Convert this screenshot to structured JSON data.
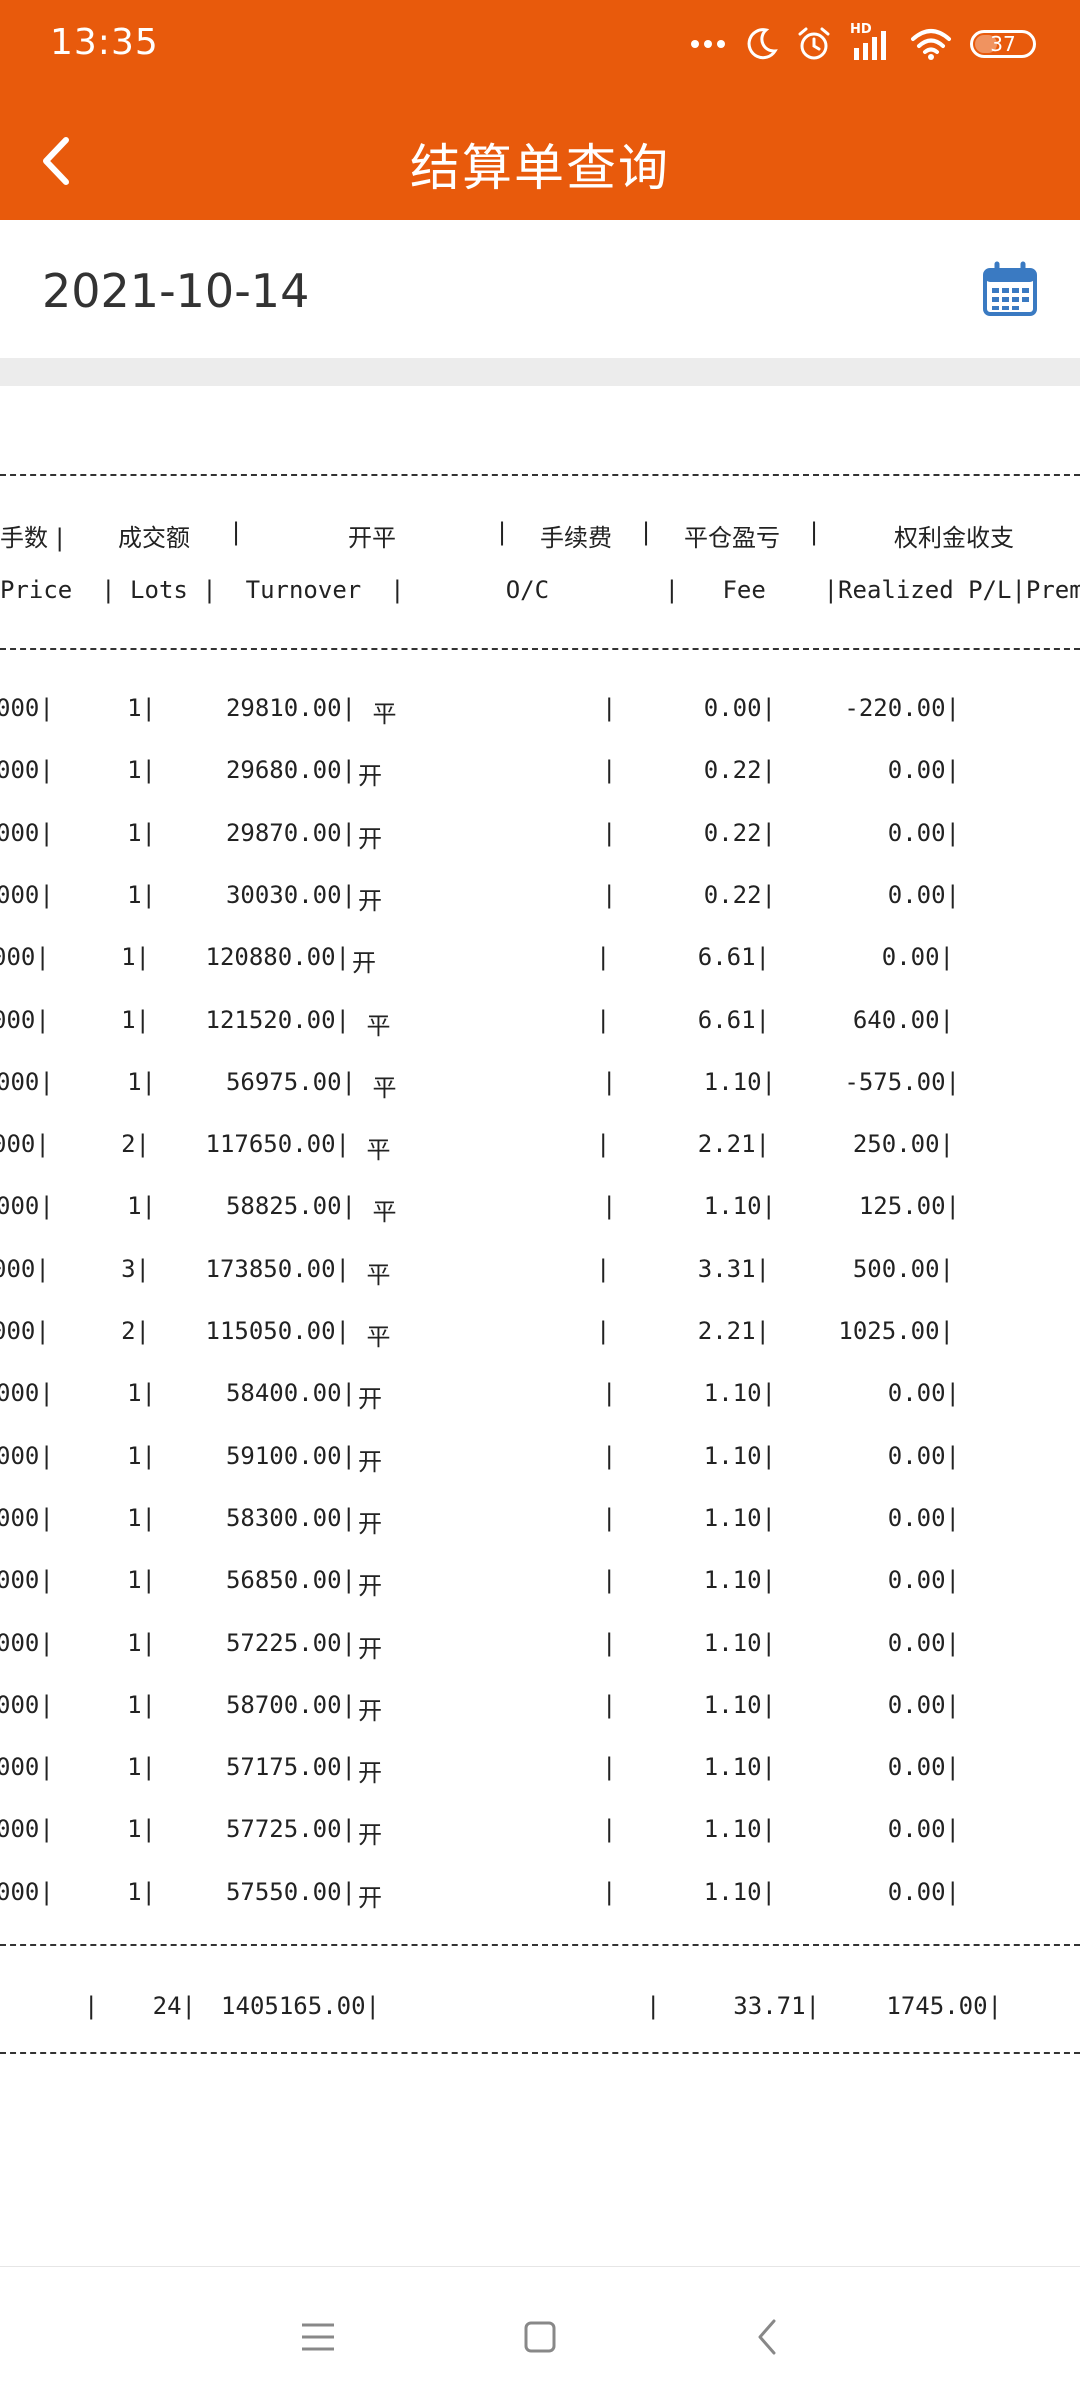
{
  "status_bar": {
    "time": "13:35",
    "battery": "37",
    "signal_label": "HD"
  },
  "header": {
    "title": "结算单查询"
  },
  "date_row": {
    "date": "2021-10-14"
  },
  "table": {
    "header_cn": [
      {
        "key": "lots",
        "text": "手数 |"
      },
      {
        "key": "turnover",
        "text": "成交额"
      },
      {
        "key": "sep1",
        "text": "|"
      },
      {
        "key": "oc",
        "text": "开平"
      },
      {
        "key": "sep2",
        "text": "|"
      },
      {
        "key": "fee",
        "text": "手续费"
      },
      {
        "key": "sep3",
        "text": "|"
      },
      {
        "key": "pl",
        "text": "平仓盈亏"
      },
      {
        "key": "sep4",
        "text": "|"
      },
      {
        "key": "premium",
        "text": "权利金收支"
      }
    ],
    "header_en": "Price  | Lots |  Turnover  |       O/C        |   Fee    |Realized P/L|Premi",
    "rows": [
      {
        "price": "000|",
        "lots": "1|",
        "turnover": "29810.00|",
        "oc": " 平",
        "fee": "0.00|",
        "pl": "-220.00|"
      },
      {
        "price": "000|",
        "lots": "1|",
        "turnover": "29680.00|",
        "oc": "开",
        "fee": "0.22|",
        "pl": "0.00|"
      },
      {
        "price": "000|",
        "lots": "1|",
        "turnover": "29870.00|",
        "oc": "开",
        "fee": "0.22|",
        "pl": "0.00|"
      },
      {
        "price": "000|",
        "lots": "1|",
        "turnover": "30030.00|",
        "oc": "开",
        "fee": "0.22|",
        "pl": "0.00|"
      },
      {
        "price": "000|",
        "lots": "1|",
        "turnover": "120880.00|",
        "oc": "开",
        "fee": "6.61|",
        "pl": "0.00|"
      },
      {
        "price": "000|",
        "lots": "1|",
        "turnover": "121520.00|",
        "oc": " 平",
        "fee": "6.61|",
        "pl": "640.00|"
      },
      {
        "price": "000|",
        "lots": "1|",
        "turnover": "56975.00|",
        "oc": " 平",
        "fee": "1.10|",
        "pl": "-575.00|"
      },
      {
        "price": "000|",
        "lots": "2|",
        "turnover": "117650.00|",
        "oc": " 平",
        "fee": "2.21|",
        "pl": "250.00|"
      },
      {
        "price": "000|",
        "lots": "1|",
        "turnover": "58825.00|",
        "oc": " 平",
        "fee": "1.10|",
        "pl": "125.00|"
      },
      {
        "price": "000|",
        "lots": "3|",
        "turnover": "173850.00|",
        "oc": " 平",
        "fee": "3.31|",
        "pl": "500.00|"
      },
      {
        "price": "000|",
        "lots": "2|",
        "turnover": "115050.00|",
        "oc": " 平",
        "fee": "2.21|",
        "pl": "1025.00|"
      },
      {
        "price": "000|",
        "lots": "1|",
        "turnover": "58400.00|",
        "oc": "开",
        "fee": "1.10|",
        "pl": "0.00|"
      },
      {
        "price": "000|",
        "lots": "1|",
        "turnover": "59100.00|",
        "oc": "开",
        "fee": "1.10|",
        "pl": "0.00|"
      },
      {
        "price": "000|",
        "lots": "1|",
        "turnover": "58300.00|",
        "oc": "开",
        "fee": "1.10|",
        "pl": "0.00|"
      },
      {
        "price": "000|",
        "lots": "1|",
        "turnover": "56850.00|",
        "oc": "开",
        "fee": "1.10|",
        "pl": "0.00|"
      },
      {
        "price": "000|",
        "lots": "1|",
        "turnover": "57225.00|",
        "oc": "开",
        "fee": "1.10|",
        "pl": "0.00|"
      },
      {
        "price": "000|",
        "lots": "1|",
        "turnover": "58700.00|",
        "oc": "开",
        "fee": "1.10|",
        "pl": "0.00|"
      },
      {
        "price": "000|",
        "lots": "1|",
        "turnover": "57175.00|",
        "oc": "开",
        "fee": "1.10|",
        "pl": "0.00|"
      },
      {
        "price": "000|",
        "lots": "1|",
        "turnover": "57725.00|",
        "oc": "开",
        "fee": "1.10|",
        "pl": "0.00|"
      },
      {
        "price": "000|",
        "lots": "1|",
        "turnover": "57550.00|",
        "oc": "开",
        "fee": "1.10|",
        "pl": "0.00|"
      }
    ],
    "oc_sep": "|",
    "total": {
      "price": "|",
      "lots": "24|",
      "turnover": "1405165.00|",
      "oc_sep": "|",
      "fee": "33.71|",
      "pl": "1745.00|"
    }
  },
  "colors": {
    "header_bg": "#e85a0c",
    "calendar_icon": "#3a7ac2"
  },
  "icons": {
    "back": "chevron-left-icon",
    "calendar": "calendar-icon",
    "nav_menu": "menu-icon",
    "nav_home": "square-icon",
    "nav_back": "chevron-left-icon"
  }
}
